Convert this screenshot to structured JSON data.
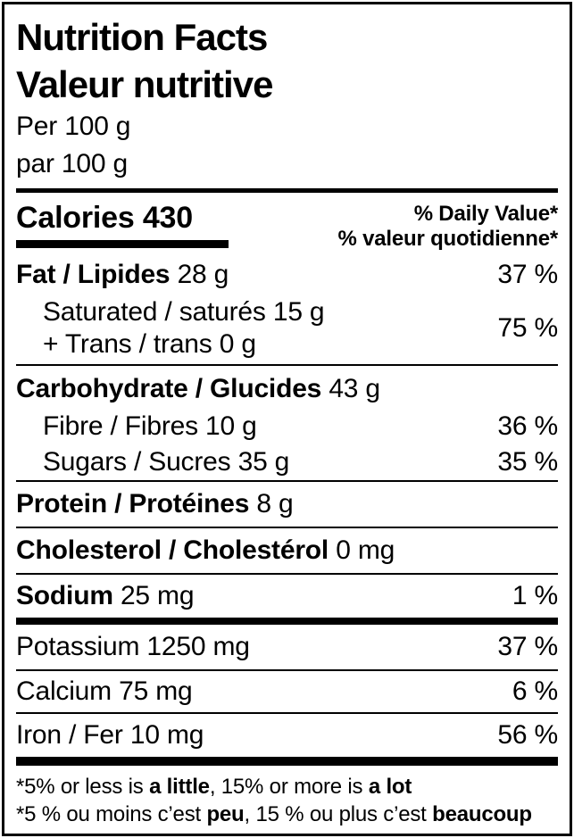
{
  "colors": {
    "text": "#000000",
    "background": "#ffffff",
    "rules": "#000000"
  },
  "header": {
    "title_en": "Nutrition Facts",
    "title_fr": "Valeur nutritive",
    "serving_en": "Per 100 g",
    "serving_fr": "par 100 g"
  },
  "calories": {
    "label": "Calories",
    "value": "430"
  },
  "daily_value_header": {
    "en": "% Daily Value*",
    "fr": "% valeur quotidienne*"
  },
  "nutrients": {
    "fat": {
      "name": "Fat / Lipides",
      "amount": "28 g",
      "daily_value": "37 %"
    },
    "saturated_trans": {
      "line1_name": "Saturated / saturés",
      "line1_amount": "15 g",
      "line2_name": "+ Trans / trans",
      "line2_amount": "0 g",
      "daily_value": "75 %"
    },
    "carbohydrate": {
      "name": "Carbohydrate / Glucides",
      "amount": "43 g"
    },
    "fibre": {
      "name": "Fibre / Fibres",
      "amount": "10 g",
      "daily_value": "36 %"
    },
    "sugars": {
      "name": "Sugars / Sucres",
      "amount": "35 g",
      "daily_value": "35 %"
    },
    "protein": {
      "name": "Protein / Protéines",
      "amount": "8 g"
    },
    "cholesterol": {
      "name": "Cholesterol / Cholestérol",
      "amount": "0 mg"
    },
    "sodium": {
      "name": "Sodium",
      "amount": "25 mg",
      "daily_value": "1 %"
    },
    "potassium": {
      "name": "Potassium",
      "amount": "1250 mg",
      "daily_value": "37 %"
    },
    "calcium": {
      "name": "Calcium",
      "amount": "75 mg",
      "daily_value": "6 %"
    },
    "iron": {
      "name": "Iron / Fer",
      "amount": "10 mg",
      "daily_value": "56 %"
    }
  },
  "footnote": {
    "en": {
      "text1": "*5% or less is ",
      "bold1": "a little",
      "text2": ", 15% or more is ",
      "bold2": "a lot"
    },
    "fr": {
      "text1": "*5 % ou moins c’est ",
      "bold1": "peu",
      "text2": ", 15 % ou plus c’est ",
      "bold2": "beaucoup"
    }
  }
}
